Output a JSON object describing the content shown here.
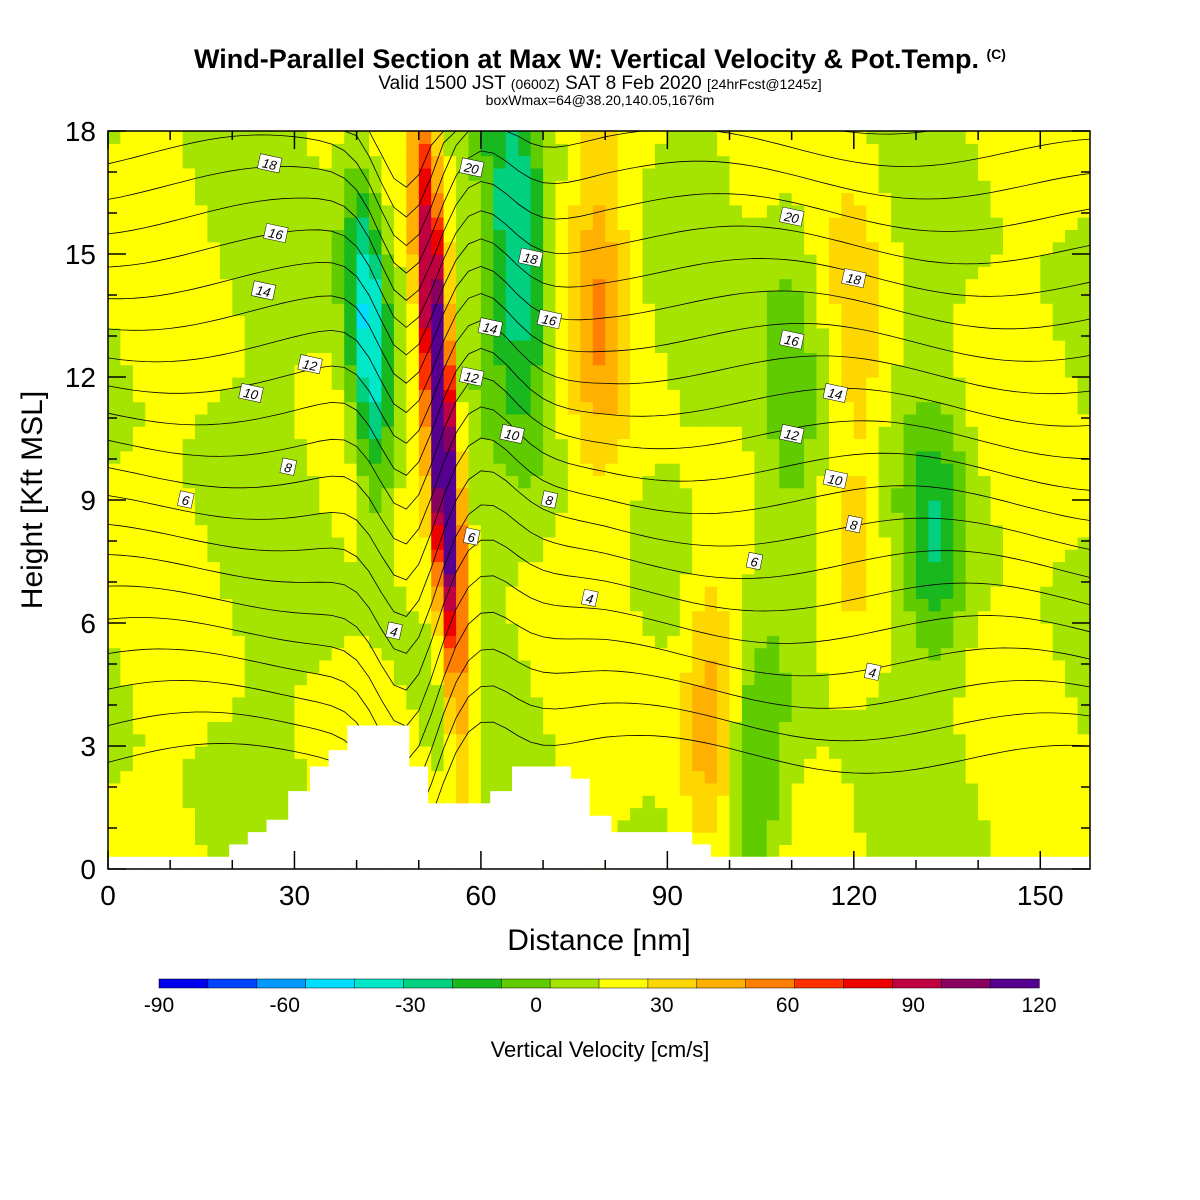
{
  "titles": {
    "main": "Wind-Parallel Section at Max W: Vertical Velocity & Pot.Temp.",
    "copyright": "(C)",
    "valid_prefix": "Valid 1500 JST",
    "valid_utc": "(0600Z)",
    "valid_date": "SAT 8 Feb 2020",
    "forecast": "[24hrFcst@1245z]",
    "box": "boxWmax=64@38.20,140.05,1676m"
  },
  "chart_data": {
    "type": "heatmap",
    "xlabel": "Distance [nm]",
    "ylabel": "Height [Kft MSL]",
    "xlim": [
      0,
      158
    ],
    "ylim": [
      0,
      18
    ],
    "x_ticks": [
      0,
      30,
      60,
      90,
      120,
      150
    ],
    "y_ticks": [
      0,
      3,
      6,
      9,
      12,
      15,
      18
    ],
    "colorbar": {
      "label": "Vertical Velocity [cm/s]",
      "min": -90,
      "max": 120,
      "step": 10,
      "tick_values": [
        -90,
        -60,
        -30,
        0,
        30,
        60,
        90,
        120
      ],
      "colors": [
        "#0000ee",
        "#0044ff",
        "#0099ff",
        "#00ddff",
        "#00e8c8",
        "#00d080",
        "#19b81e",
        "#60cc00",
        "#a5e400",
        "#ffff00",
        "#ffd700",
        "#ffb000",
        "#ff8000",
        "#ff3000",
        "#ee0000",
        "#c00040",
        "#8a0060",
        "#550090"
      ]
    },
    "velocity_features": [
      {
        "x": 52,
        "z": 11,
        "w": 110,
        "description": "strong updraft"
      },
      {
        "x": 42,
        "z": 13,
        "w": -55,
        "description": "downdraft"
      },
      {
        "x": 66,
        "z": 15,
        "w": -40,
        "description": "downdraft"
      },
      {
        "x": 79,
        "z": 14,
        "w": 25,
        "description": "updraft"
      },
      {
        "x": 97,
        "z": 4,
        "w": 30,
        "description": "updraft"
      },
      {
        "x": 121,
        "z": 12,
        "w": 15,
        "description": "updraft"
      },
      {
        "x": 110,
        "z": 11,
        "w": -20,
        "description": "downdraft"
      },
      {
        "x": 133,
        "z": 8,
        "w": -25,
        "description": "downdraft"
      },
      {
        "x": 104,
        "z": 2,
        "w": -25,
        "description": "downdraft"
      }
    ],
    "isentrope_labels": [
      {
        "text": "18",
        "x": 26,
        "z": 17.2
      },
      {
        "text": "16",
        "x": 27,
        "z": 15.5
      },
      {
        "text": "14",
        "x": 25,
        "z": 14.1
      },
      {
        "text": "12",
        "x": 32.5,
        "z": 12.3
      },
      {
        "text": "10",
        "x": 23,
        "z": 11.6
      },
      {
        "text": "8",
        "x": 29,
        "z": 9.8
      },
      {
        "text": "6",
        "x": 12.5,
        "z": 9.0
      },
      {
        "text": "20",
        "x": 58.5,
        "z": 17.1
      },
      {
        "text": "18",
        "x": 68,
        "z": 14.9
      },
      {
        "text": "14",
        "x": 61.5,
        "z": 13.2
      },
      {
        "text": "16",
        "x": 71,
        "z": 13.4
      },
      {
        "text": "12",
        "x": 58.5,
        "z": 12.0
      },
      {
        "text": "10",
        "x": 65,
        "z": 10.6
      },
      {
        "text": "8",
        "x": 71,
        "z": 9.0
      },
      {
        "text": "6",
        "x": 58.5,
        "z": 8.1
      },
      {
        "text": "4",
        "x": 77.5,
        "z": 6.6
      },
      {
        "text": "4",
        "x": 46,
        "z": 5.8
      },
      {
        "text": "20",
        "x": 110,
        "z": 15.9
      },
      {
        "text": "18",
        "x": 120,
        "z": 14.4
      },
      {
        "text": "16",
        "x": 110,
        "z": 12.9
      },
      {
        "text": "14",
        "x": 117,
        "z": 11.6
      },
      {
        "text": "12",
        "x": 110,
        "z": 10.6
      },
      {
        "text": "10",
        "x": 117,
        "z": 9.5
      },
      {
        "text": "8",
        "x": 120,
        "z": 8.4
      },
      {
        "text": "6",
        "x": 104,
        "z": 7.5
      },
      {
        "text": "4",
        "x": 123,
        "z": 4.8
      }
    ],
    "terrain": [
      [
        0,
        0.3
      ],
      [
        19.5,
        0.3
      ],
      [
        19.5,
        0.6
      ],
      [
        22.5,
        0.6
      ],
      [
        22.5,
        0.9
      ],
      [
        25.5,
        0.9
      ],
      [
        25.5,
        1.2
      ],
      [
        29,
        1.2
      ],
      [
        29,
        1.9
      ],
      [
        32.5,
        1.9
      ],
      [
        32.5,
        2.5
      ],
      [
        35.5,
        2.5
      ],
      [
        35.5,
        2.9
      ],
      [
        38.5,
        2.9
      ],
      [
        38.5,
        3.5
      ],
      [
        48.5,
        3.5
      ],
      [
        48.5,
        2.5
      ],
      [
        51.5,
        2.5
      ],
      [
        51.5,
        1.6
      ],
      [
        61.5,
        1.6
      ],
      [
        61.5,
        1.9
      ],
      [
        65,
        1.9
      ],
      [
        65,
        2.5
      ],
      [
        74.5,
        2.5
      ],
      [
        74.5,
        2.2
      ],
      [
        77.5,
        2.2
      ],
      [
        77.5,
        1.3
      ],
      [
        81,
        1.3
      ],
      [
        81,
        0.9
      ],
      [
        94,
        0.9
      ],
      [
        94,
        0.6
      ],
      [
        97,
        0.6
      ],
      [
        97,
        0.3
      ],
      [
        158,
        0.3
      ],
      [
        158,
        0
      ],
      [
        0,
        0
      ]
    ]
  }
}
